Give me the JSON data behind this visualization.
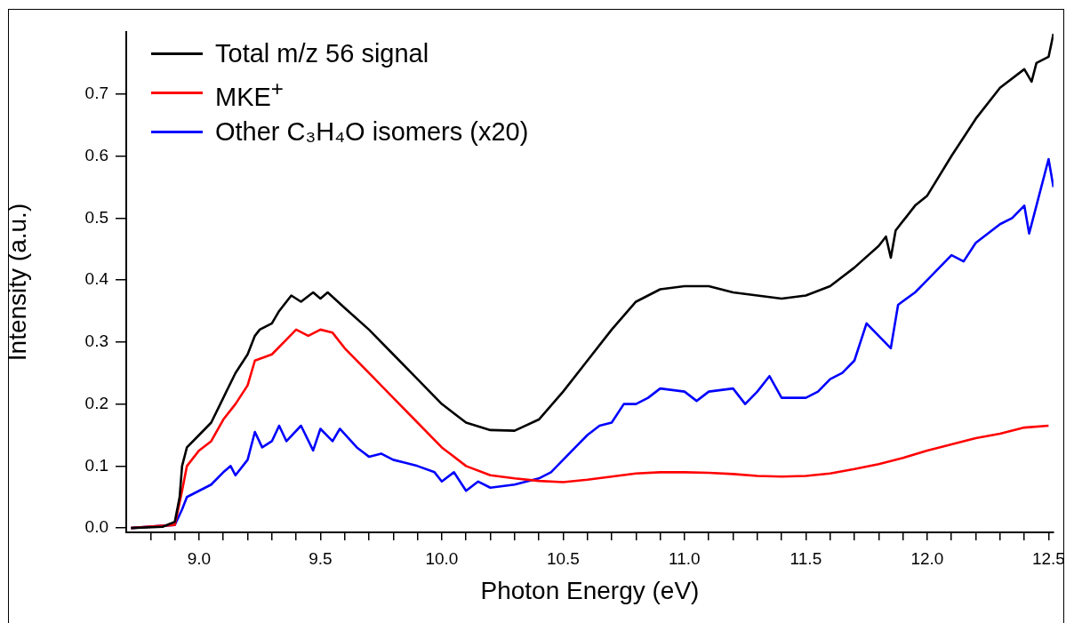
{
  "chart_data": {
    "type": "line",
    "xlabel": "Photon Energy (eV)",
    "ylabel": "Intensity (a.u.)",
    "xlim": [
      8.7,
      12.52
    ],
    "ylim": [
      -0.007,
      0.8
    ],
    "xticks": [
      {
        "value": 8.8,
        "label": null
      },
      {
        "value": 8.9,
        "label": null
      },
      {
        "value": 9,
        "label": "9.0"
      },
      {
        "value": 9.1,
        "label": null
      },
      {
        "value": 9.2,
        "label": null
      },
      {
        "value": 9.3,
        "label": null
      },
      {
        "value": 9.4,
        "label": null
      },
      {
        "value": 9.5,
        "label": "9.5"
      },
      {
        "value": 9.6,
        "label": null
      },
      {
        "value": 9.7,
        "label": null
      },
      {
        "value": 9.8,
        "label": null
      },
      {
        "value": 9.9,
        "label": null
      },
      {
        "value": 10,
        "label": "10.0"
      },
      {
        "value": 10.1,
        "label": null
      },
      {
        "value": 10.2,
        "label": null
      },
      {
        "value": 10.3,
        "label": null
      },
      {
        "value": 10.4,
        "label": null
      },
      {
        "value": 10.5,
        "label": "10.5"
      },
      {
        "value": 10.6,
        "label": null
      },
      {
        "value": 10.7,
        "label": null
      },
      {
        "value": 10.8,
        "label": null
      },
      {
        "value": 10.9,
        "label": null
      },
      {
        "value": 11,
        "label": "11.0"
      },
      {
        "value": 11.1,
        "label": null
      },
      {
        "value": 11.2,
        "label": null
      },
      {
        "value": 11.3,
        "label": null
      },
      {
        "value": 11.4,
        "label": null
      },
      {
        "value": 11.5,
        "label": "11.5"
      },
      {
        "value": 11.6,
        "label": null
      },
      {
        "value": 11.7,
        "label": null
      },
      {
        "value": 11.8,
        "label": null
      },
      {
        "value": 11.9,
        "label": null
      },
      {
        "value": 12,
        "label": "12.0"
      },
      {
        "value": 12.1,
        "label": null
      },
      {
        "value": 12.2,
        "label": null
      },
      {
        "value": 12.3,
        "label": null
      },
      {
        "value": 12.4,
        "label": null
      },
      {
        "value": 12.5,
        "label": "12.5"
      }
    ],
    "yticks": [
      {
        "value": 0,
        "label": "0.0"
      },
      0.1,
      0.2,
      0.3,
      0.4,
      0.5,
      0.6,
      0.7
    ],
    "grid": false,
    "legend": "top left",
    "marker": "none",
    "line_style": "solid",
    "series": [
      {
        "name": "Total m/z 56 signal",
        "color": "#000000",
        "x": [
          8.72,
          8.85,
          8.9,
          8.92,
          8.93,
          8.95,
          9.0,
          9.05,
          9.1,
          9.15,
          9.2,
          9.23,
          9.25,
          9.3,
          9.33,
          9.38,
          9.42,
          9.47,
          9.5,
          9.53,
          9.6,
          9.7,
          9.8,
          9.9,
          10.0,
          10.1,
          10.2,
          10.3,
          10.4,
          10.5,
          10.6,
          10.7,
          10.8,
          10.9,
          11.0,
          11.1,
          11.2,
          11.3,
          11.4,
          11.5,
          11.6,
          11.7,
          11.8,
          11.83,
          11.85,
          11.87,
          11.95,
          12.0,
          12.1,
          12.2,
          12.3,
          12.4,
          12.43,
          12.45,
          12.5,
          12.52
        ],
        "values": [
          0,
          0.002,
          0.01,
          0.05,
          0.1,
          0.13,
          0.15,
          0.17,
          0.21,
          0.25,
          0.28,
          0.31,
          0.32,
          0.33,
          0.35,
          0.375,
          0.365,
          0.38,
          0.37,
          0.38,
          0.355,
          0.32,
          0.28,
          0.24,
          0.2,
          0.17,
          0.158,
          0.157,
          0.175,
          0.22,
          0.27,
          0.32,
          0.365,
          0.385,
          0.39,
          0.39,
          0.38,
          0.375,
          0.37,
          0.375,
          0.39,
          0.42,
          0.455,
          0.47,
          0.436,
          0.48,
          0.52,
          0.536,
          0.6,
          0.66,
          0.71,
          0.74,
          0.72,
          0.75,
          0.76,
          0.797
        ]
      },
      {
        "name": "MKE$^{+}$",
        "color": "#ff0000",
        "x": [
          8.72,
          8.9,
          8.93,
          8.95,
          9.0,
          9.05,
          9.1,
          9.15,
          9.2,
          9.23,
          9.3,
          9.35,
          9.4,
          9.45,
          9.5,
          9.55,
          9.6,
          9.7,
          9.8,
          9.9,
          10.0,
          10.1,
          10.2,
          10.3,
          10.4,
          10.5,
          10.6,
          10.7,
          10.8,
          10.9,
          11.0,
          11.1,
          11.2,
          11.3,
          11.4,
          11.5,
          11.6,
          11.7,
          11.8,
          11.9,
          12.0,
          12.1,
          12.2,
          12.3,
          12.4,
          12.5
        ],
        "values": [
          0,
          0.005,
          0.06,
          0.1,
          0.125,
          0.14,
          0.175,
          0.2,
          0.23,
          0.27,
          0.28,
          0.3,
          0.32,
          0.31,
          0.32,
          0.315,
          0.29,
          0.25,
          0.21,
          0.17,
          0.13,
          0.1,
          0.085,
          0.08,
          0.076,
          0.074,
          0.078,
          0.083,
          0.088,
          0.09,
          0.09,
          0.089,
          0.087,
          0.084,
          0.083,
          0.084,
          0.088,
          0.095,
          0.103,
          0.113,
          0.125,
          0.135,
          0.145,
          0.152,
          0.162,
          0.165
        ]
      },
      {
        "name": "Other C₃H₄O isomers (x20)",
        "color": "#0000ff",
        "x": [
          8.72,
          8.9,
          8.93,
          8.95,
          9.0,
          9.05,
          9.1,
          9.13,
          9.15,
          9.2,
          9.23,
          9.26,
          9.3,
          9.33,
          9.36,
          9.42,
          9.47,
          9.5,
          9.55,
          9.58,
          9.65,
          9.7,
          9.75,
          9.8,
          9.85,
          9.9,
          9.97,
          10.0,
          10.05,
          10.1,
          10.15,
          10.2,
          10.3,
          10.4,
          10.45,
          10.5,
          10.55,
          10.6,
          10.65,
          10.7,
          10.75,
          10.8,
          10.85,
          10.9,
          11.0,
          11.05,
          11.1,
          11.2,
          11.25,
          11.3,
          11.35,
          11.4,
          11.5,
          11.55,
          11.6,
          11.65,
          11.7,
          11.75,
          11.8,
          11.85,
          11.88,
          11.95,
          12.0,
          12.05,
          12.1,
          12.15,
          12.2,
          12.3,
          12.35,
          12.4,
          12.42,
          12.45,
          12.5,
          12.52
        ],
        "values": [
          0,
          0.005,
          0.03,
          0.05,
          0.06,
          0.07,
          0.09,
          0.1,
          0.085,
          0.11,
          0.155,
          0.13,
          0.14,
          0.165,
          0.14,
          0.165,
          0.125,
          0.16,
          0.14,
          0.16,
          0.13,
          0.115,
          0.12,
          0.11,
          0.105,
          0.1,
          0.09,
          0.075,
          0.09,
          0.06,
          0.075,
          0.065,
          0.07,
          0.08,
          0.09,
          0.11,
          0.13,
          0.15,
          0.165,
          0.17,
          0.2,
          0.2,
          0.21,
          0.225,
          0.22,
          0.205,
          0.22,
          0.225,
          0.2,
          0.22,
          0.245,
          0.21,
          0.21,
          0.22,
          0.24,
          0.25,
          0.27,
          0.33,
          0.31,
          0.29,
          0.36,
          0.38,
          0.4,
          0.42,
          0.44,
          0.43,
          0.46,
          0.49,
          0.5,
          0.52,
          0.475,
          0.52,
          0.595,
          0.55
        ]
      }
    ]
  }
}
